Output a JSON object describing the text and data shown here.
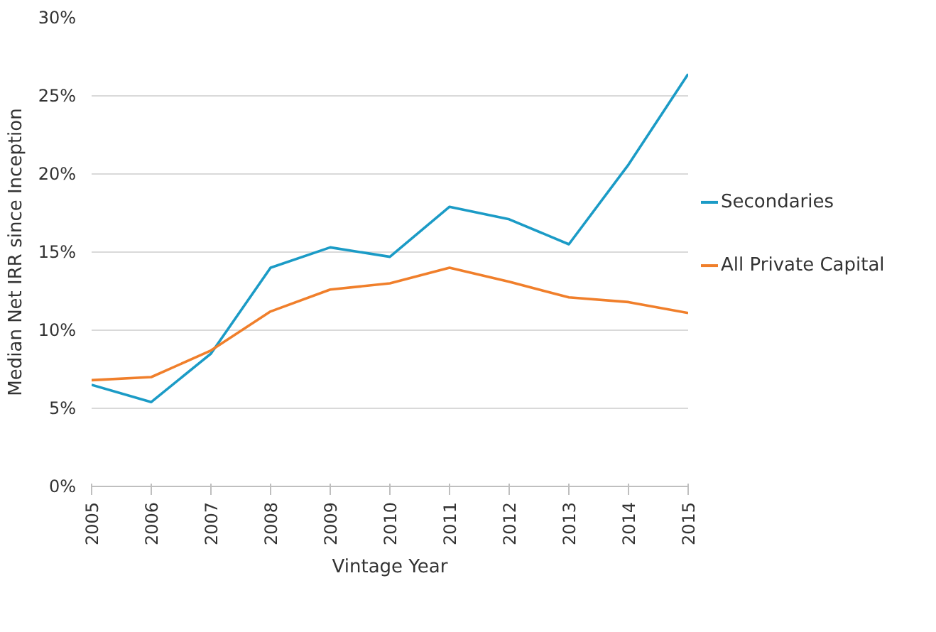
{
  "chart_data": {
    "type": "line",
    "xlabel": "Vintage Year",
    "ylabel": "Median Net IRR since Inception",
    "x": [
      2005,
      2006,
      2007,
      2008,
      2009,
      2010,
      2011,
      2012,
      2013,
      2014,
      2015
    ],
    "series": [
      {
        "name": "Secondaries",
        "color": "#1b9bc6",
        "values": [
          6.5,
          5.4,
          8.5,
          14.0,
          15.3,
          14.7,
          17.9,
          17.1,
          15.5,
          20.6,
          26.4
        ]
      },
      {
        "name": "All Private Capital",
        "color": "#f07f2b",
        "values": [
          6.8,
          7.0,
          8.7,
          11.2,
          12.6,
          13.0,
          14.0,
          13.1,
          12.1,
          11.8,
          11.1
        ]
      }
    ],
    "xlim": [
      2005,
      2015
    ],
    "xticks": [
      2005,
      2006,
      2007,
      2008,
      2009,
      2010,
      2011,
      2012,
      2013,
      2014,
      2015
    ],
    "ylim": [
      0,
      30
    ],
    "yticks": [
      {
        "value": 0,
        "label": "0%"
      },
      {
        "value": 5,
        "label": "5%"
      },
      {
        "value": 10,
        "label": "10%"
      },
      {
        "value": 15,
        "label": "15%"
      },
      {
        "value": 20,
        "label": "20%"
      },
      {
        "value": 25,
        "label": "25%"
      },
      {
        "value": 30,
        "label": "30%"
      }
    ],
    "grid": "y",
    "legend": "right",
    "marker": "none",
    "line_style": "solid"
  }
}
